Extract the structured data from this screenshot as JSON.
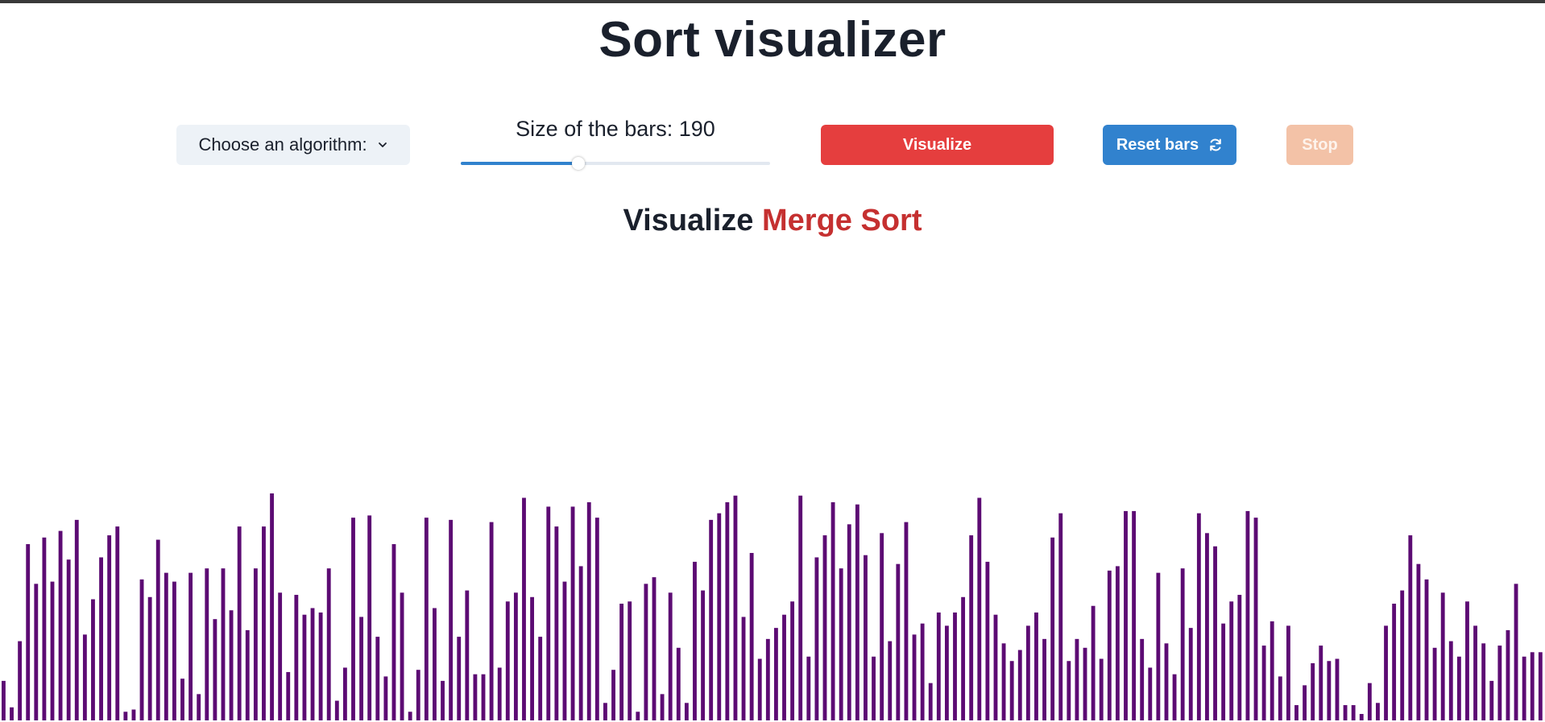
{
  "title": "Sort visualizer",
  "controls": {
    "algorithm_select_label": "Choose an algorithm:",
    "size_label": "Size of the bars: 190",
    "bar_count": 190,
    "slider_fraction": 0.38,
    "visualize_label": "Visualize",
    "reset_label": "Reset bars",
    "stop_label": "Stop",
    "colors": {
      "visualize": "#e53e3e",
      "reset": "#3182ce",
      "stop": "#f3c2a7",
      "slider_fill": "#3182ce"
    }
  },
  "heading": {
    "prefix": "Visualize",
    "algorithm": "Merge Sort",
    "algorithm_color": "#c53030"
  },
  "icons": {
    "algorithm_dropdown": "chevron-down-icon",
    "reset": "refresh-icon"
  },
  "chart_data": {
    "type": "bar",
    "bar_color": "#5c0b73",
    "ylim": [
      0,
      100
    ],
    "values": [
      15,
      3,
      33,
      77,
      59,
      80,
      60,
      83,
      70,
      88,
      36,
      52,
      71,
      81,
      85,
      1,
      2,
      61,
      53,
      79,
      64,
      60,
      16,
      64,
      9,
      66,
      43,
      66,
      47,
      85,
      38,
      66,
      85,
      100,
      55,
      19,
      54,
      45,
      48,
      46,
      66,
      6,
      21,
      89,
      44,
      90,
      35,
      17,
      77,
      55,
      1,
      20,
      89,
      48,
      15,
      88,
      35,
      56,
      18,
      18,
      87,
      21,
      51,
      55,
      98,
      53,
      35,
      94,
      85,
      60,
      94,
      67,
      96,
      89,
      5,
      20,
      50,
      51,
      1,
      59,
      62,
      9,
      55,
      30,
      5,
      69,
      56,
      88,
      91,
      96,
      99,
      44,
      73,
      25,
      34,
      39,
      45,
      51,
      99,
      26,
      71,
      81,
      96,
      66,
      86,
      95,
      72,
      26,
      82,
      33,
      68,
      87,
      36,
      41,
      14,
      46,
      40,
      46,
      53,
      81,
      98,
      69,
      45,
      32,
      24,
      29,
      40,
      46,
      34,
      80,
      91,
      24,
      34,
      30,
      49,
      25,
      65,
      67,
      92,
      92,
      34,
      21,
      64,
      32,
      18,
      66,
      39,
      91,
      82,
      76,
      41,
      51,
      54,
      92,
      89,
      31,
      42,
      17,
      40,
      4,
      13,
      23,
      31,
      24,
      25,
      4,
      4,
      0,
      14,
      5,
      40,
      50,
      56,
      81,
      68,
      61,
      30,
      55,
      33,
      26,
      51,
      40,
      32,
      15,
      31,
      38,
      59,
      26,
      28,
      28
    ]
  }
}
